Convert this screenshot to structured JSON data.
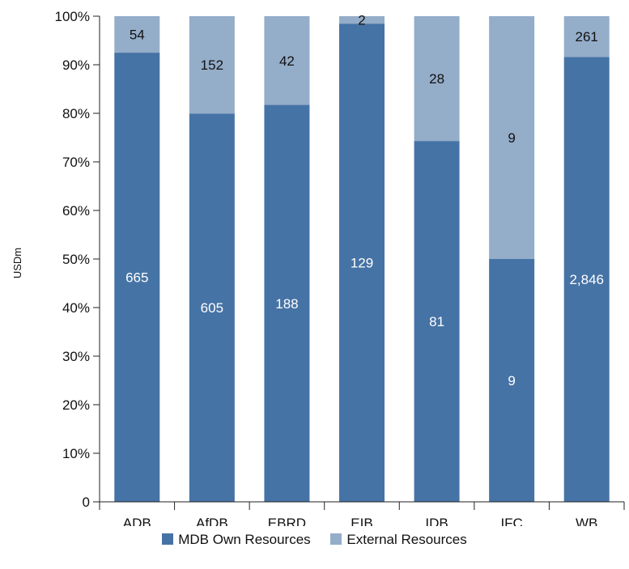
{
  "chart_data": {
    "type": "bar",
    "stacked": "percent",
    "categories": [
      "ADB",
      "AfDB",
      "EBRD",
      "EIB",
      "IDB",
      "IFC",
      "WB"
    ],
    "series": [
      {
        "name": "MDB Own Resources",
        "color": "#4673a5",
        "label_color": "#ffffff",
        "values": [
          665,
          605,
          188,
          129,
          81,
          9,
          2846
        ],
        "labels": [
          "665",
          "605",
          "188",
          "129",
          "81",
          "9",
          "2,846"
        ]
      },
      {
        "name": "External Resources",
        "color": "#94adc9",
        "label_color": "#111111",
        "values": [
          54,
          152,
          42,
          2,
          28,
          9,
          261
        ],
        "labels": [
          "54",
          "152",
          "42",
          "2",
          "28",
          "9",
          "261"
        ]
      }
    ],
    "ylabel": "USDm",
    "yticks": [
      "0",
      "10%",
      "20%",
      "30%",
      "40%",
      "50%",
      "60%",
      "70%",
      "80%",
      "90%",
      "100%"
    ],
    "ylim": [
      0,
      100
    ],
    "grid": false,
    "legend_position": "bottom"
  }
}
